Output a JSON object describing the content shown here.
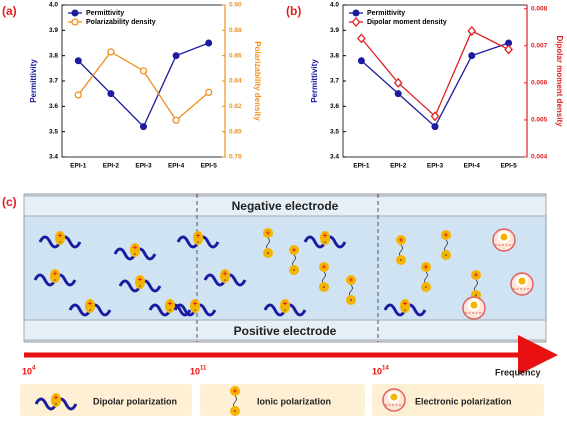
{
  "chart_data": [
    {
      "type": "line",
      "label": "(a)",
      "categories": [
        "EPI-1",
        "EPI-2",
        "EPI-3",
        "EPI-4",
        "EPI-5"
      ],
      "ylabel": "Permittivity",
      "y2label": "Polarizability density",
      "ylim": [
        3.4,
        4.0
      ],
      "yticks": [
        3.4,
        3.5,
        3.6,
        3.7,
        3.8,
        3.9,
        {
          "value": 4.0,
          "label": "4.0"
        }
      ],
      "y2lim": [
        0.78,
        0.9
      ],
      "y2ticks": [
        0.78,
        {
          "value": 0.8,
          "label": "0.80"
        },
        0.82,
        0.84,
        0.86,
        0.88,
        {
          "value": 0.9,
          "label": "0.90"
        }
      ],
      "legend": "upper left",
      "series": [
        {
          "name": "Permittivity",
          "color": "#1c1ca0",
          "marker": "circle",
          "values": [
            3.78,
            3.65,
            3.52,
            3.8,
            3.85
          ]
        },
        {
          "name": "Polarizability density",
          "color": "#f0901e",
          "marker": "open-circle",
          "axis": "y2",
          "values": [
            0.829,
            0.863,
            0.848,
            0.809,
            0.831
          ]
        }
      ]
    },
    {
      "type": "line",
      "label": "(b)",
      "categories": [
        "EPI-1",
        "EPI-2",
        "EPI-3",
        "EPI-4",
        "EPI-5"
      ],
      "ylabel": "Permittivity",
      "y2label": "Dipolar moment density",
      "ylim": [
        3.4,
        4.0
      ],
      "yticks": [
        3.4,
        3.5,
        3.6,
        3.7,
        3.8,
        3.9,
        {
          "value": 4.0,
          "label": "4.0"
        }
      ],
      "y2lim": [
        0.004,
        0.0081
      ],
      "y2ticks": [
        0.004,
        0.005,
        0.006,
        0.007,
        0.008
      ],
      "legend": "upper left",
      "series": [
        {
          "name": "Permittivity",
          "color": "#1c1ca0",
          "marker": "circle",
          "values": [
            3.78,
            3.65,
            3.52,
            3.8,
            3.85
          ]
        },
        {
          "name": "Dipolar moment density",
          "color": "#e02020",
          "marker": "open-diamond",
          "axis": "y2",
          "values": [
            0.0072,
            0.006,
            0.0051,
            0.0074,
            0.0069
          ]
        }
      ]
    }
  ],
  "diagram": {
    "label": "(c)",
    "top_electrode": "Negative electrode",
    "bottom_electrode": "Positive electrode",
    "frequencies": [
      {
        "base": "10",
        "exp": "4"
      },
      {
        "base": "10",
        "exp": "11"
      },
      {
        "base": "10",
        "exp": "14"
      }
    ],
    "axis_label": "Frequency",
    "legend": [
      "Dipolar polarization",
      "Ionic polarization",
      "Electronic polarization"
    ]
  }
}
